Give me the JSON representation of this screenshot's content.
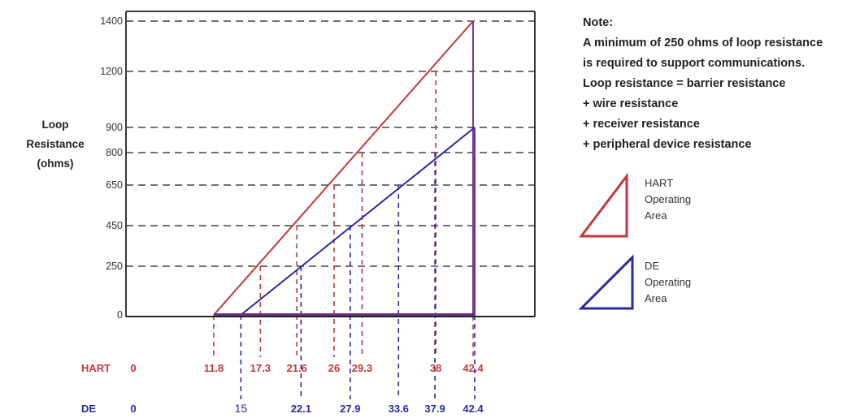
{
  "chart_data": {
    "type": "area",
    "ylabel": [
      "Loop",
      "Resistance",
      "(ohms)"
    ],
    "y_ticks": [
      0,
      250,
      450,
      650,
      800,
      900,
      1200,
      1400
    ],
    "ylim": [
      0,
      1400
    ],
    "xlim": [
      0,
      42.4
    ],
    "grid": "dashed horizontal lines at y ticks",
    "series": [
      {
        "name": "HART",
        "color": "#c0393b",
        "row_label": "HART",
        "row_start": "0",
        "points": [
          [
            11.8,
            0
          ],
          [
            42.4,
            1400
          ]
        ],
        "x_ticks": [
          {
            "label": "11.8",
            "x": 11.8,
            "y": 0
          },
          {
            "label": "17.3",
            "x": 17.3,
            "y": 250
          },
          {
            "label": "21.6",
            "x": 21.6,
            "y": 450
          },
          {
            "label": "26",
            "x": 26,
            "y": 650
          },
          {
            "label": "29.3",
            "x": 29.3,
            "y": 800
          },
          {
            "label": "38",
            "x": 38,
            "y": 1200
          },
          {
            "label": "42.4",
            "x": 42.4,
            "y": 1400
          }
        ]
      },
      {
        "name": "DE",
        "color": "#2a2aa0",
        "row_label": "DE",
        "row_start": "0",
        "points": [
          [
            15,
            0
          ],
          [
            42.4,
            900
          ]
        ],
        "x_ticks": [
          {
            "label": "15",
            "x": 15,
            "y": 0
          },
          {
            "label": "22.1",
            "x": 22.1,
            "y": 250
          },
          {
            "label": "27.9",
            "x": 27.9,
            "y": 450
          },
          {
            "label": "33.6",
            "x": 33.6,
            "y": 650
          },
          {
            "label": "37.9",
            "x": 37.9,
            "y": 800
          },
          {
            "label": "42.4",
            "x": 42.4,
            "y": 900
          }
        ]
      }
    ]
  },
  "note": {
    "lines": [
      "Note:",
      "A minimum of 250 ohms of loop resistance",
      "is required to support communications.",
      "Loop resistance = barrier resistance",
      "+ wire resistance",
      "+ receiver resistance",
      "+ peripheral device resistance"
    ]
  },
  "legend": {
    "hart": [
      "HART",
      "Operating",
      "Area"
    ],
    "de": [
      "DE",
      "Operating",
      "Area"
    ]
  }
}
